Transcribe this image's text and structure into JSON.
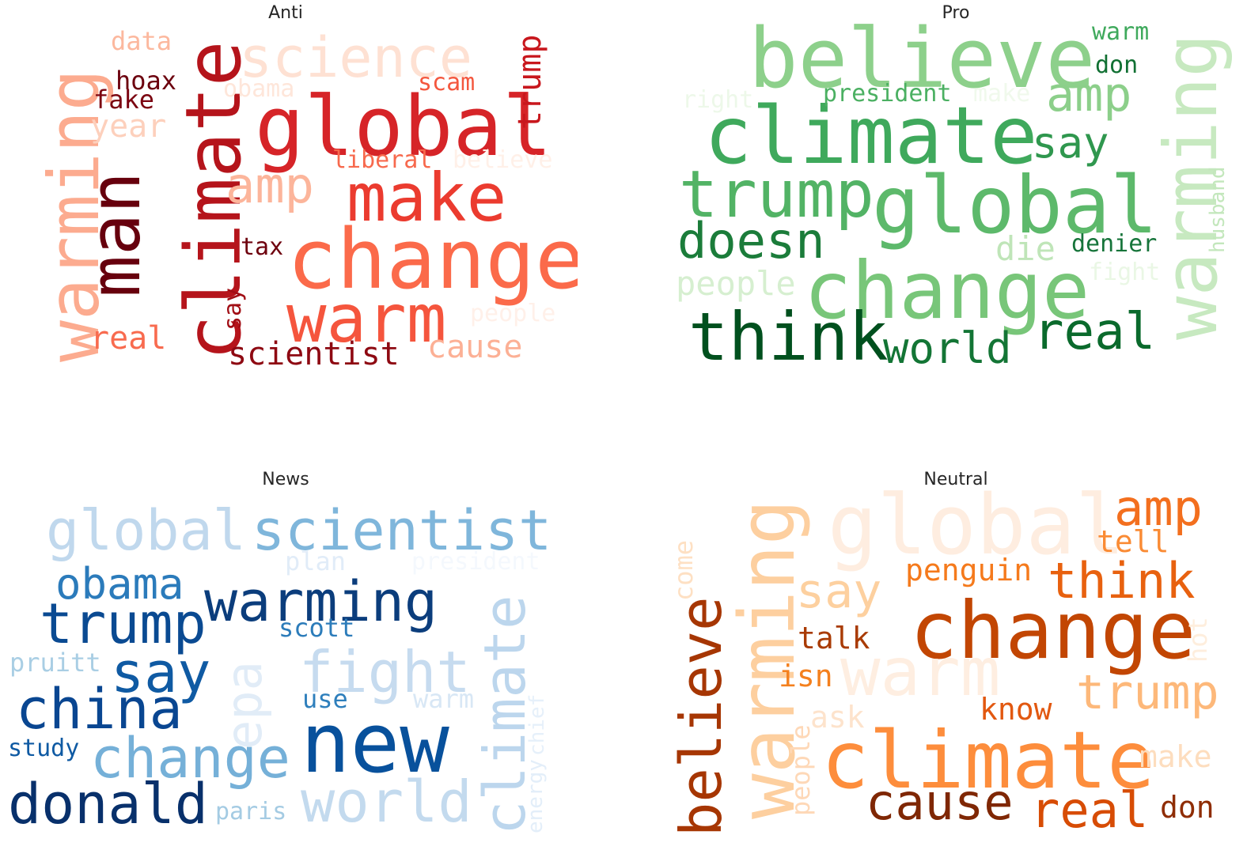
{
  "panels": [
    {
      "title": "Anti",
      "words": [
        {
          "text": "global",
          "color": "#d62428"
        },
        {
          "text": "change",
          "color": "#fb6a4a"
        },
        {
          "text": "climate",
          "color": "#b5141b"
        },
        {
          "text": "warming",
          "color": "#fcab8f"
        },
        {
          "text": "man",
          "color": "#67000d"
        },
        {
          "text": "make",
          "color": "#eb3b2f"
        },
        {
          "text": "warm",
          "color": "#f5553d"
        },
        {
          "text": "science",
          "color": "#fee1d3"
        },
        {
          "text": "amp",
          "color": "#fcb59b"
        },
        {
          "text": "trump",
          "color": "#c8171d"
        },
        {
          "text": "scientist",
          "color": "#8e0912"
        },
        {
          "text": "cause",
          "color": "#fcb095"
        },
        {
          "text": "year",
          "color": "#fdd0bc"
        },
        {
          "text": "real",
          "color": "#f86b4f"
        },
        {
          "text": "hoax",
          "color": "#6c010e"
        },
        {
          "text": "fake",
          "color": "#7b0411"
        },
        {
          "text": "data",
          "color": "#fcb89e"
        },
        {
          "text": "obama",
          "color": "#fee6da"
        },
        {
          "text": "scam",
          "color": "#f4573e"
        },
        {
          "text": "liberal",
          "color": "#f7694d"
        },
        {
          "text": "believe",
          "color": "#fff0e8"
        },
        {
          "text": "tax",
          "color": "#6e010e"
        },
        {
          "text": "say",
          "color": "#a10e15"
        },
        {
          "text": "people",
          "color": "#fff0e9"
        }
      ]
    },
    {
      "title": "Pro",
      "words": [
        {
          "text": "believe",
          "color": "#8dd08b"
        },
        {
          "text": "climate",
          "color": "#3fa95c"
        },
        {
          "text": "global",
          "color": "#5db96b"
        },
        {
          "text": "change",
          "color": "#78c679"
        },
        {
          "text": "warming",
          "color": "#c7e9c0"
        },
        {
          "text": "think",
          "color": "#00501e"
        },
        {
          "text": "trump",
          "color": "#52b365"
        },
        {
          "text": "doesn",
          "color": "#1b7c3a"
        },
        {
          "text": "real",
          "color": "#0a6a2c"
        },
        {
          "text": "world",
          "color": "#137535"
        },
        {
          "text": "amp",
          "color": "#8ccf8a"
        },
        {
          "text": "say",
          "color": "#2f974e"
        },
        {
          "text": "people",
          "color": "#d6efd0"
        },
        {
          "text": "die",
          "color": "#bfe5b8"
        },
        {
          "text": "denier",
          "color": "#16743a"
        },
        {
          "text": "warm",
          "color": "#3fa95c"
        },
        {
          "text": "don",
          "color": "#117033"
        },
        {
          "text": "president",
          "color": "#4bb062"
        },
        {
          "text": "right",
          "color": "#edf8e9"
        },
        {
          "text": "make",
          "color": "#f0f9ec"
        },
        {
          "text": "husband",
          "color": "#c3e7bc"
        },
        {
          "text": "fight",
          "color": "#eaf7e5"
        }
      ]
    },
    {
      "title": "News",
      "words": [
        {
          "text": "global",
          "color": "#c0d8ed"
        },
        {
          "text": "scientist",
          "color": "#7fb6db"
        },
        {
          "text": "warming",
          "color": "#0b3d7c"
        },
        {
          "text": "trump",
          "color": "#0a4a92"
        },
        {
          "text": "obama",
          "color": "#2b7bbb"
        },
        {
          "text": "say",
          "color": "#0f5aa3"
        },
        {
          "text": "china",
          "color": "#094691"
        },
        {
          "text": "new",
          "color": "#08519c"
        },
        {
          "text": "change",
          "color": "#75b0d8"
        },
        {
          "text": "donald",
          "color": "#08306b"
        },
        {
          "text": "fight",
          "color": "#c6dbef"
        },
        {
          "text": "climate",
          "color": "#bcd6ed"
        },
        {
          "text": "world",
          "color": "#c3daee"
        },
        {
          "text": "epa",
          "color": "#e1ecf7"
        },
        {
          "text": "plan",
          "color": "#e1ecf8"
        },
        {
          "text": "president",
          "color": "#f4f8fd"
        },
        {
          "text": "scott",
          "color": "#2c7cba"
        },
        {
          "text": "pruitt",
          "color": "#a9cee4"
        },
        {
          "text": "use",
          "color": "#2e7fbc"
        },
        {
          "text": "warm",
          "color": "#d8e7f5"
        },
        {
          "text": "study",
          "color": "#0f5aa3"
        },
        {
          "text": "paris",
          "color": "#a4cbe3"
        },
        {
          "text": "energy",
          "color": "#e3eef9"
        },
        {
          "text": "chief",
          "color": "#e6f0fa"
        }
      ]
    },
    {
      "title": "Neutral",
      "words": [
        {
          "text": "global",
          "color": "#feede0"
        },
        {
          "text": "warming",
          "color": "#fdcf9f"
        },
        {
          "text": "change",
          "color": "#c24603"
        },
        {
          "text": "climate",
          "color": "#fd8d3c"
        },
        {
          "text": "believe",
          "color": "#a63603"
        },
        {
          "text": "warm",
          "color": "#feeee1"
        },
        {
          "text": "amp",
          "color": "#f36f1e"
        },
        {
          "text": "think",
          "color": "#e8610f"
        },
        {
          "text": "trump",
          "color": "#fdb87a"
        },
        {
          "text": "say",
          "color": "#fdd09f"
        },
        {
          "text": "cause",
          "color": "#7f2704"
        },
        {
          "text": "real",
          "color": "#d74c05"
        },
        {
          "text": "penguin",
          "color": "#f57a1c"
        },
        {
          "text": "tell",
          "color": "#fa8b34"
        },
        {
          "text": "talk",
          "color": "#a93b04"
        },
        {
          "text": "isn",
          "color": "#f4801e"
        },
        {
          "text": "know",
          "color": "#e25810"
        },
        {
          "text": "ask",
          "color": "#fde3cc"
        },
        {
          "text": "make",
          "color": "#fdddbe"
        },
        {
          "text": "don",
          "color": "#8f2d04"
        },
        {
          "text": "come",
          "color": "#fee0c3"
        },
        {
          "text": "people",
          "color": "#fed8b7"
        },
        {
          "text": "hot",
          "color": "#feeedd"
        }
      ]
    }
  ]
}
